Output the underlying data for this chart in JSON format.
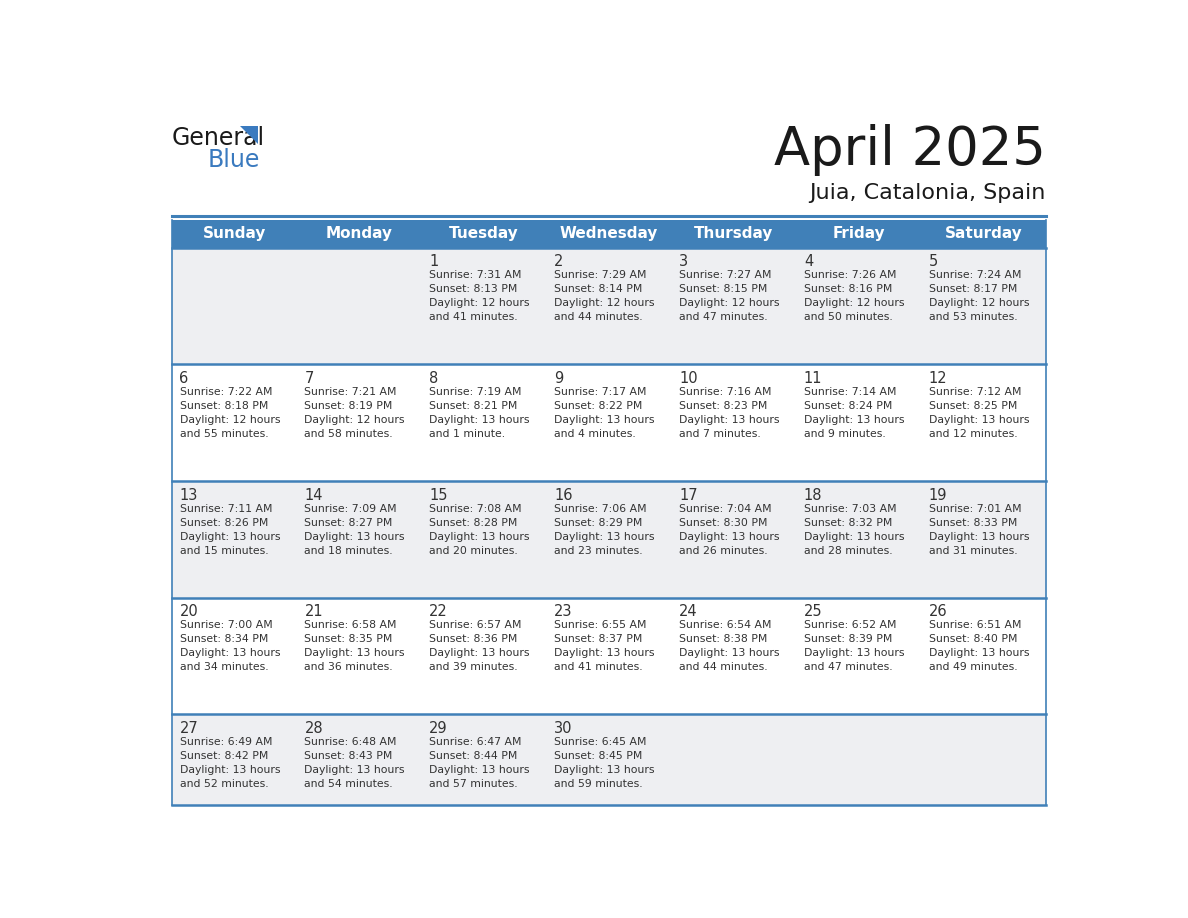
{
  "title": "April 2025",
  "subtitle": "Juia, Catalonia, Spain",
  "header_bg_color": "#4080b8",
  "header_text_color": "#ffffff",
  "cell_bg_color_odd": "#eeeff2",
  "cell_bg_color_even": "#ffffff",
  "border_color": "#4080b8",
  "text_color": "#333333",
  "days_of_week": [
    "Sunday",
    "Monday",
    "Tuesday",
    "Wednesday",
    "Thursday",
    "Friday",
    "Saturday"
  ],
  "calendar": [
    [
      {
        "day": "",
        "info": ""
      },
      {
        "day": "",
        "info": ""
      },
      {
        "day": "1",
        "info": "Sunrise: 7:31 AM\nSunset: 8:13 PM\nDaylight: 12 hours\nand 41 minutes."
      },
      {
        "day": "2",
        "info": "Sunrise: 7:29 AM\nSunset: 8:14 PM\nDaylight: 12 hours\nand 44 minutes."
      },
      {
        "day": "3",
        "info": "Sunrise: 7:27 AM\nSunset: 8:15 PM\nDaylight: 12 hours\nand 47 minutes."
      },
      {
        "day": "4",
        "info": "Sunrise: 7:26 AM\nSunset: 8:16 PM\nDaylight: 12 hours\nand 50 minutes."
      },
      {
        "day": "5",
        "info": "Sunrise: 7:24 AM\nSunset: 8:17 PM\nDaylight: 12 hours\nand 53 minutes."
      }
    ],
    [
      {
        "day": "6",
        "info": "Sunrise: 7:22 AM\nSunset: 8:18 PM\nDaylight: 12 hours\nand 55 minutes."
      },
      {
        "day": "7",
        "info": "Sunrise: 7:21 AM\nSunset: 8:19 PM\nDaylight: 12 hours\nand 58 minutes."
      },
      {
        "day": "8",
        "info": "Sunrise: 7:19 AM\nSunset: 8:21 PM\nDaylight: 13 hours\nand 1 minute."
      },
      {
        "day": "9",
        "info": "Sunrise: 7:17 AM\nSunset: 8:22 PM\nDaylight: 13 hours\nand 4 minutes."
      },
      {
        "day": "10",
        "info": "Sunrise: 7:16 AM\nSunset: 8:23 PM\nDaylight: 13 hours\nand 7 minutes."
      },
      {
        "day": "11",
        "info": "Sunrise: 7:14 AM\nSunset: 8:24 PM\nDaylight: 13 hours\nand 9 minutes."
      },
      {
        "day": "12",
        "info": "Sunrise: 7:12 AM\nSunset: 8:25 PM\nDaylight: 13 hours\nand 12 minutes."
      }
    ],
    [
      {
        "day": "13",
        "info": "Sunrise: 7:11 AM\nSunset: 8:26 PM\nDaylight: 13 hours\nand 15 minutes."
      },
      {
        "day": "14",
        "info": "Sunrise: 7:09 AM\nSunset: 8:27 PM\nDaylight: 13 hours\nand 18 minutes."
      },
      {
        "day": "15",
        "info": "Sunrise: 7:08 AM\nSunset: 8:28 PM\nDaylight: 13 hours\nand 20 minutes."
      },
      {
        "day": "16",
        "info": "Sunrise: 7:06 AM\nSunset: 8:29 PM\nDaylight: 13 hours\nand 23 minutes."
      },
      {
        "day": "17",
        "info": "Sunrise: 7:04 AM\nSunset: 8:30 PM\nDaylight: 13 hours\nand 26 minutes."
      },
      {
        "day": "18",
        "info": "Sunrise: 7:03 AM\nSunset: 8:32 PM\nDaylight: 13 hours\nand 28 minutes."
      },
      {
        "day": "19",
        "info": "Sunrise: 7:01 AM\nSunset: 8:33 PM\nDaylight: 13 hours\nand 31 minutes."
      }
    ],
    [
      {
        "day": "20",
        "info": "Sunrise: 7:00 AM\nSunset: 8:34 PM\nDaylight: 13 hours\nand 34 minutes."
      },
      {
        "day": "21",
        "info": "Sunrise: 6:58 AM\nSunset: 8:35 PM\nDaylight: 13 hours\nand 36 minutes."
      },
      {
        "day": "22",
        "info": "Sunrise: 6:57 AM\nSunset: 8:36 PM\nDaylight: 13 hours\nand 39 minutes."
      },
      {
        "day": "23",
        "info": "Sunrise: 6:55 AM\nSunset: 8:37 PM\nDaylight: 13 hours\nand 41 minutes."
      },
      {
        "day": "24",
        "info": "Sunrise: 6:54 AM\nSunset: 8:38 PM\nDaylight: 13 hours\nand 44 minutes."
      },
      {
        "day": "25",
        "info": "Sunrise: 6:52 AM\nSunset: 8:39 PM\nDaylight: 13 hours\nand 47 minutes."
      },
      {
        "day": "26",
        "info": "Sunrise: 6:51 AM\nSunset: 8:40 PM\nDaylight: 13 hours\nand 49 minutes."
      }
    ],
    [
      {
        "day": "27",
        "info": "Sunrise: 6:49 AM\nSunset: 8:42 PM\nDaylight: 13 hours\nand 52 minutes."
      },
      {
        "day": "28",
        "info": "Sunrise: 6:48 AM\nSunset: 8:43 PM\nDaylight: 13 hours\nand 54 minutes."
      },
      {
        "day": "29",
        "info": "Sunrise: 6:47 AM\nSunset: 8:44 PM\nDaylight: 13 hours\nand 57 minutes."
      },
      {
        "day": "30",
        "info": "Sunrise: 6:45 AM\nSunset: 8:45 PM\nDaylight: 13 hours\nand 59 minutes."
      },
      {
        "day": "",
        "info": ""
      },
      {
        "day": "",
        "info": ""
      },
      {
        "day": "",
        "info": ""
      }
    ]
  ],
  "logo_text_general": "General",
  "logo_text_blue": "Blue",
  "logo_triangle_color": "#3a7abf",
  "fig_width": 11.88,
  "fig_height": 9.18,
  "dpi": 100
}
